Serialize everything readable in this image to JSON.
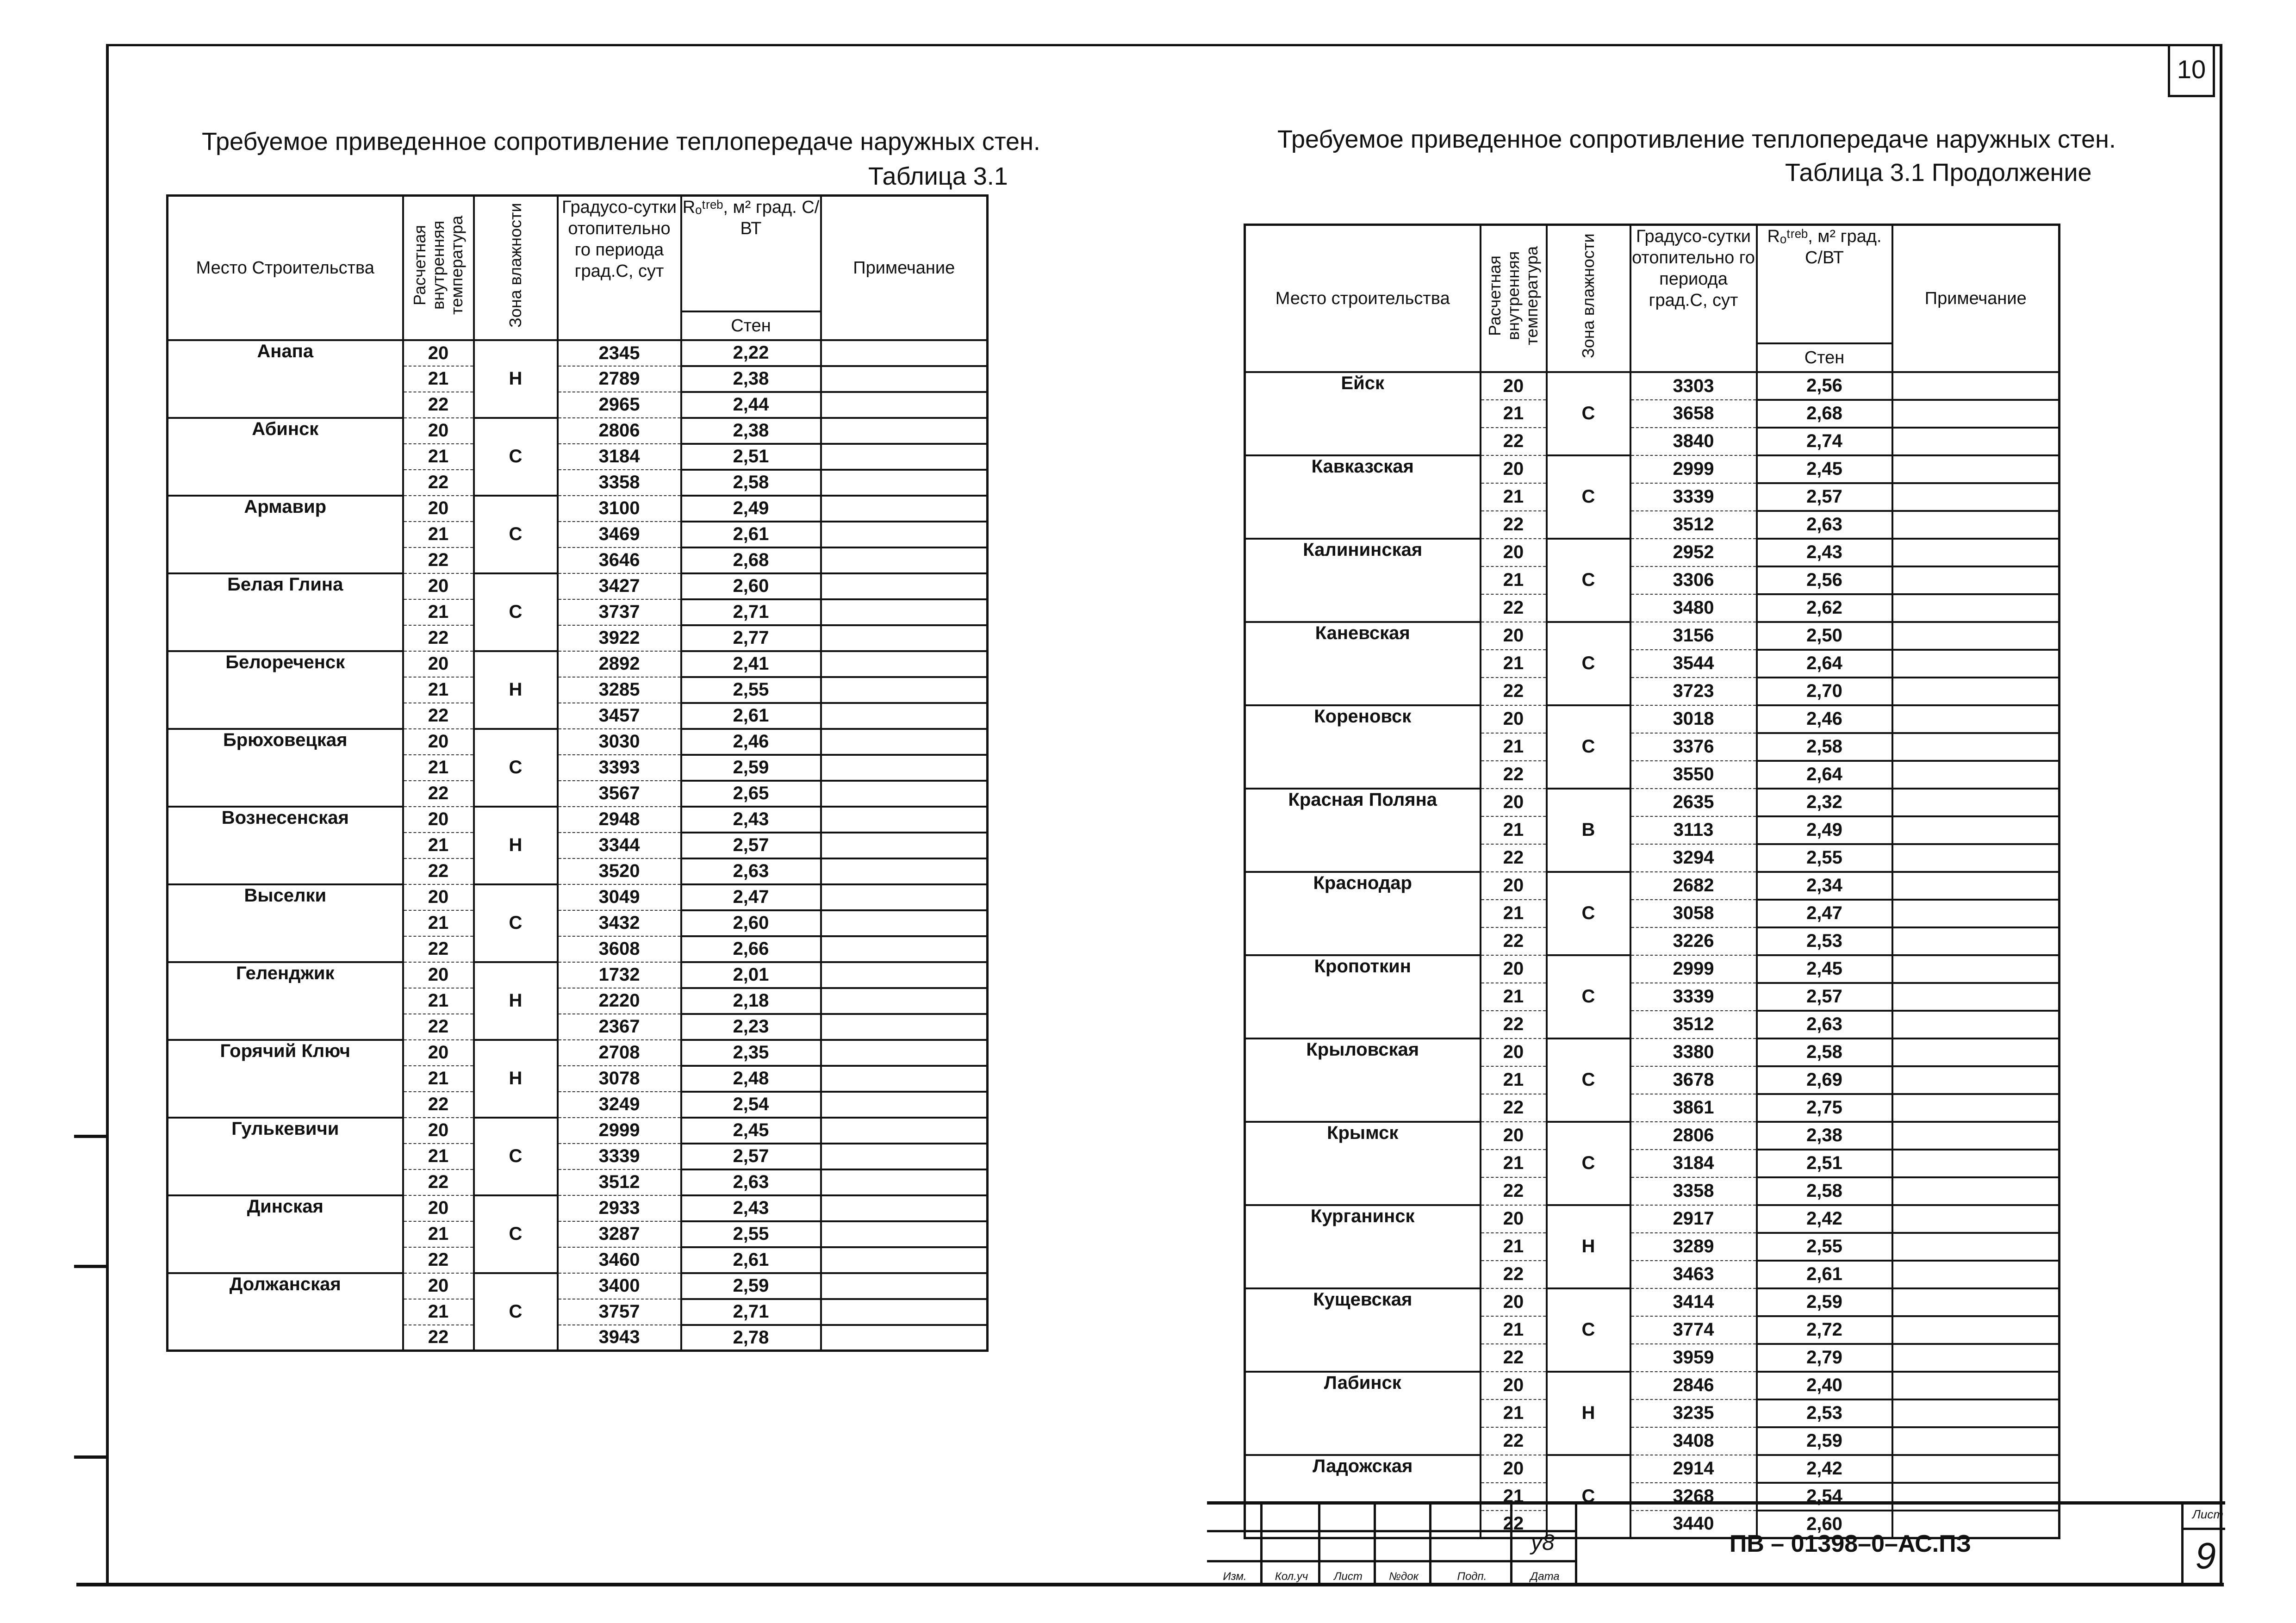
{
  "page_number_top": "10",
  "left": {
    "title": "Требуемое приведенное сопротивление теплопередаче наружных стен.",
    "table_label": "Таблица 3.1"
  },
  "right": {
    "title": "Требуемое приведенное сопротивление теплопередаче наружных стен.",
    "table_label": "Таблица 3.1 Продолжение"
  },
  "headers_left": {
    "place": "Место Строительства",
    "temp": "Расчетная внутренняя температура",
    "zone": "Зона влажности",
    "gsop": "Градусо-сутки отопительно го периода град.С, сут",
    "r": "Rₒᵗʳᵉᵇ, м² град. С/ВТ",
    "r_sub": "Стен",
    "note": "Примечание"
  },
  "headers_right": {
    "place": "Место строительства",
    "temp": "Расчетная внутренняя температура",
    "zone": "Зона влажности",
    "gsop": "Градусо-сутки отопительно го периода град.С, сут",
    "r": "Rₒᵗʳᵉᵇ, м² град. С/ВТ",
    "r_sub": "Стен",
    "note": "Примечание"
  },
  "table_left": [
    {
      "name": "Анапа",
      "zone": "Н",
      "rows": [
        [
          "20",
          "2345",
          "2,22"
        ],
        [
          "21",
          "2789",
          "2,38"
        ],
        [
          "22",
          "2965",
          "2,44"
        ]
      ]
    },
    {
      "name": "Абинск",
      "zone": "С",
      "rows": [
        [
          "20",
          "2806",
          "2,38"
        ],
        [
          "21",
          "3184",
          "2,51"
        ],
        [
          "22",
          "3358",
          "2,58"
        ]
      ]
    },
    {
      "name": "Армавир",
      "zone": "С",
      "rows": [
        [
          "20",
          "3100",
          "2,49"
        ],
        [
          "21",
          "3469",
          "2,61"
        ],
        [
          "22",
          "3646",
          "2,68"
        ]
      ]
    },
    {
      "name": "Белая Глина",
      "zone": "С",
      "rows": [
        [
          "20",
          "3427",
          "2,60"
        ],
        [
          "21",
          "3737",
          "2,71"
        ],
        [
          "22",
          "3922",
          "2,77"
        ]
      ]
    },
    {
      "name": "Белореченск",
      "zone": "Н",
      "rows": [
        [
          "20",
          "2892",
          "2,41"
        ],
        [
          "21",
          "3285",
          "2,55"
        ],
        [
          "22",
          "3457",
          "2,61"
        ]
      ]
    },
    {
      "name": "Брюховецкая",
      "zone": "С",
      "rows": [
        [
          "20",
          "3030",
          "2,46"
        ],
        [
          "21",
          "3393",
          "2,59"
        ],
        [
          "22",
          "3567",
          "2,65"
        ]
      ]
    },
    {
      "name": "Вознесенская",
      "zone": "Н",
      "rows": [
        [
          "20",
          "2948",
          "2,43"
        ],
        [
          "21",
          "3344",
          "2,57"
        ],
        [
          "22",
          "3520",
          "2,63"
        ]
      ]
    },
    {
      "name": "Выселки",
      "zone": "С",
      "rows": [
        [
          "20",
          "3049",
          "2,47"
        ],
        [
          "21",
          "3432",
          "2,60"
        ],
        [
          "22",
          "3608",
          "2,66"
        ]
      ]
    },
    {
      "name": "Геленджик",
      "zone": "Н",
      "rows": [
        [
          "20",
          "1732",
          "2,01"
        ],
        [
          "21",
          "2220",
          "2,18"
        ],
        [
          "22",
          "2367",
          "2,23"
        ]
      ]
    },
    {
      "name": "Горячий Ключ",
      "zone": "Н",
      "rows": [
        [
          "20",
          "2708",
          "2,35"
        ],
        [
          "21",
          "3078",
          "2,48"
        ],
        [
          "22",
          "3249",
          "2,54"
        ]
      ]
    },
    {
      "name": "Гулькевичи",
      "zone": "С",
      "rows": [
        [
          "20",
          "2999",
          "2,45"
        ],
        [
          "21",
          "3339",
          "2,57"
        ],
        [
          "22",
          "3512",
          "2,63"
        ]
      ]
    },
    {
      "name": "Динская",
      "zone": "С",
      "rows": [
        [
          "20",
          "2933",
          "2,43"
        ],
        [
          "21",
          "3287",
          "2,55"
        ],
        [
          "22",
          "3460",
          "2,61"
        ]
      ]
    },
    {
      "name": "Должанская",
      "zone": "С",
      "rows": [
        [
          "20",
          "3400",
          "2,59"
        ],
        [
          "21",
          "3757",
          "2,71"
        ],
        [
          "22",
          "3943",
          "2,78"
        ]
      ]
    }
  ],
  "table_right": [
    {
      "name": "Ейск",
      "zone": "С",
      "rows": [
        [
          "20",
          "3303",
          "2,56"
        ],
        [
          "21",
          "3658",
          "2,68"
        ],
        [
          "22",
          "3840",
          "2,74"
        ]
      ]
    },
    {
      "name": "Кавказская",
      "zone": "С",
      "rows": [
        [
          "20",
          "2999",
          "2,45"
        ],
        [
          "21",
          "3339",
          "2,57"
        ],
        [
          "22",
          "3512",
          "2,63"
        ]
      ]
    },
    {
      "name": "Калининская",
      "zone": "С",
      "rows": [
        [
          "20",
          "2952",
          "2,43"
        ],
        [
          "21",
          "3306",
          "2,56"
        ],
        [
          "22",
          "3480",
          "2,62"
        ]
      ]
    },
    {
      "name": "Каневская",
      "zone": "С",
      "rows": [
        [
          "20",
          "3156",
          "2,50"
        ],
        [
          "21",
          "3544",
          "2,64"
        ],
        [
          "22",
          "3723",
          "2,70"
        ]
      ]
    },
    {
      "name": "Кореновск",
      "zone": "С",
      "rows": [
        [
          "20",
          "3018",
          "2,46"
        ],
        [
          "21",
          "3376",
          "2,58"
        ],
        [
          "22",
          "3550",
          "2,64"
        ]
      ]
    },
    {
      "name": "Красная Поляна",
      "zone": "В",
      "rows": [
        [
          "20",
          "2635",
          "2,32"
        ],
        [
          "21",
          "3113",
          "2,49"
        ],
        [
          "22",
          "3294",
          "2,55"
        ]
      ]
    },
    {
      "name": "Краснодар",
      "zone": "С",
      "rows": [
        [
          "20",
          "2682",
          "2,34"
        ],
        [
          "21",
          "3058",
          "2,47"
        ],
        [
          "22",
          "3226",
          "2,53"
        ]
      ]
    },
    {
      "name": "Кропоткин",
      "zone": "С",
      "rows": [
        [
          "20",
          "2999",
          "2,45"
        ],
        [
          "21",
          "3339",
          "2,57"
        ],
        [
          "22",
          "3512",
          "2,63"
        ]
      ]
    },
    {
      "name": "Крыловская",
      "zone": "С",
      "rows": [
        [
          "20",
          "3380",
          "2,58"
        ],
        [
          "21",
          "3678",
          "2,69"
        ],
        [
          "22",
          "3861",
          "2,75"
        ]
      ]
    },
    {
      "name": "Крымск",
      "zone": "С",
      "rows": [
        [
          "20",
          "2806",
          "2,38"
        ],
        [
          "21",
          "3184",
          "2,51"
        ],
        [
          "22",
          "3358",
          "2,58"
        ]
      ]
    },
    {
      "name": "Курганинск",
      "zone": "Н",
      "rows": [
        [
          "20",
          "2917",
          "2,42"
        ],
        [
          "21",
          "3289",
          "2,55"
        ],
        [
          "22",
          "3463",
          "2,61"
        ]
      ]
    },
    {
      "name": "Кущевская",
      "zone": "С",
      "rows": [
        [
          "20",
          "3414",
          "2,59"
        ],
        [
          "21",
          "3774",
          "2,72"
        ],
        [
          "22",
          "3959",
          "2,79"
        ]
      ]
    },
    {
      "name": "Лабинск",
      "zone": "Н",
      "rows": [
        [
          "20",
          "2846",
          "2,40"
        ],
        [
          "21",
          "3235",
          "2,53"
        ],
        [
          "22",
          "3408",
          "2,59"
        ]
      ]
    },
    {
      "name": "Ладожская",
      "zone": "С",
      "rows": [
        [
          "20",
          "2914",
          "2,42"
        ],
        [
          "21",
          "3268",
          "2,54"
        ],
        [
          "22",
          "3440",
          "2,60"
        ]
      ]
    }
  ],
  "title_block": {
    "columns": [
      "Изм.",
      "Кол.уч",
      "Лист",
      "№док",
      "Подп.",
      "Дата"
    ],
    "signature": "у8",
    "document_code": "ПВ – 01398–0–АС.ПЗ",
    "sheet_label": "Лист",
    "sheet_number": "9"
  }
}
